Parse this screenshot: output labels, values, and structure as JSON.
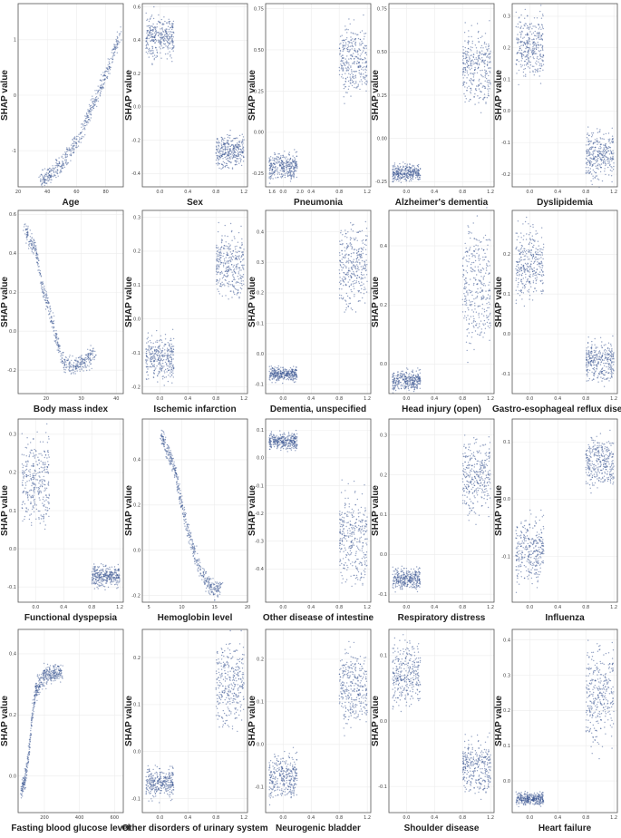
{
  "chart_data": [
    {
      "type": "scatter",
      "kind": "cont",
      "xlabel": "Age",
      "ylabel": "SHAP value",
      "xlim": [
        20,
        92
      ],
      "ylim": [
        -1.65,
        1.65
      ],
      "xticks": [
        "20",
        "40",
        "60",
        "80"
      ],
      "yticks": [
        "1",
        "0",
        "-1"
      ],
      "curve": [
        [
          36,
          -1.55
        ],
        [
          50,
          -1.25
        ],
        [
          60,
          -0.85
        ],
        [
          70,
          -0.25
        ],
        [
          80,
          0.35
        ],
        [
          90,
          1.1
        ]
      ],
      "marker_color": "#3a5592"
    },
    {
      "type": "scatter",
      "kind": "bin",
      "xlabel": "Sex",
      "ylabel": "SHAP value",
      "xlim": [
        -0.25,
        1.25
      ],
      "ylim": [
        -0.48,
        0.62
      ],
      "xticks": [
        "0.0",
        "0.4",
        "0.8",
        "1.2",
        "1.6",
        "2.0"
      ],
      "yticks": [
        "0.6",
        "0.4",
        "0.2",
        "0.0",
        "-0.2",
        "-0.4"
      ],
      "clusters": [
        {
          "x": 0,
          "y": [
            0.28,
            0.56
          ]
        },
        {
          "x": 1,
          "y": [
            -0.37,
            -0.16
          ]
        }
      ],
      "marker_color": "#3a5592"
    },
    {
      "type": "scatter",
      "kind": "bin",
      "xlabel": "Pneumonia",
      "ylabel": "SHAP value",
      "xlim": [
        -0.25,
        1.25
      ],
      "ylim": [
        -0.33,
        0.78
      ],
      "xticks": [
        "0.0",
        "0.4",
        "0.8",
        "1.2"
      ],
      "yticks": [
        "0.75",
        "0.50",
        "0.25",
        "0.00",
        "-0.25"
      ],
      "clusters": [
        {
          "x": 0,
          "y": [
            -0.29,
            -0.12
          ]
        },
        {
          "x": 1,
          "y": [
            0.22,
            0.66
          ]
        }
      ],
      "marker_color": "#3a5592"
    },
    {
      "type": "scatter",
      "kind": "bin",
      "xlabel": "Alzheimer's dementia",
      "ylabel": "SHAP value",
      "xlim": [
        -0.25,
        1.25
      ],
      "ylim": [
        -0.28,
        0.78
      ],
      "xticks": [
        "0.0",
        "0.4",
        "0.8",
        "1.2"
      ],
      "yticks": [
        "0.75",
        "0.50",
        "0.25",
        "0.00",
        "-0.25"
      ],
      "clusters": [
        {
          "x": 0,
          "y": [
            -0.25,
            -0.15
          ]
        },
        {
          "x": 1,
          "y": [
            0.2,
            0.62
          ]
        }
      ],
      "marker_color": "#3a5592"
    },
    {
      "type": "scatter",
      "kind": "bin",
      "xlabel": "Dyslipidemia",
      "ylabel": "SHAP value",
      "xlim": [
        -0.25,
        1.25
      ],
      "ylim": [
        -0.24,
        0.34
      ],
      "xticks": [
        "0.0",
        "0.4",
        "0.8",
        "1.2"
      ],
      "yticks": [
        "0.3",
        "0.2",
        "0.1",
        "0.0",
        "-0.1",
        "-0.2"
      ],
      "clusters": [
        {
          "x": 0,
          "y": [
            0.1,
            0.32
          ]
        },
        {
          "x": 1,
          "y": [
            -0.22,
            -0.05
          ]
        }
      ],
      "marker_color": "#3a5592"
    },
    {
      "type": "scatter",
      "kind": "cont",
      "xlabel": "Body mass index",
      "ylabel": "SHAP value",
      "xlim": [
        12,
        42
      ],
      "ylim": [
        -0.32,
        0.62
      ],
      "xticks": [
        "20",
        "30",
        "40"
      ],
      "yticks": [
        "0.6",
        "0.4",
        "0.2",
        "0.0",
        "-0.2"
      ],
      "curve": [
        [
          14,
          0.52
        ],
        [
          17,
          0.42
        ],
        [
          19,
          0.22
        ],
        [
          21,
          0.1
        ],
        [
          23,
          -0.05
        ],
        [
          25,
          -0.16
        ],
        [
          28,
          -0.18
        ],
        [
          34,
          -0.12
        ]
      ],
      "marker_color": "#3a5592"
    },
    {
      "type": "scatter",
      "kind": "bin",
      "xlabel": "Ischemic infarction",
      "ylabel": "SHAP value",
      "xlim": [
        -0.25,
        1.25
      ],
      "ylim": [
        -0.22,
        0.32
      ],
      "xticks": [
        "0.0",
        "0.4",
        "0.8",
        "1.2"
      ],
      "yticks": [
        "0.3",
        "0.2",
        "0.1",
        "0.0",
        "-0.1",
        "-0.2"
      ],
      "clusters": [
        {
          "x": 0,
          "y": [
            -0.18,
            -0.05
          ]
        },
        {
          "x": 1,
          "y": [
            0.06,
            0.26
          ]
        }
      ],
      "marker_color": "#3a5592"
    },
    {
      "type": "scatter",
      "kind": "bin",
      "xlabel": "Dementia, unspecified",
      "ylabel": "SHAP value",
      "xlim": [
        -0.25,
        1.25
      ],
      "ylim": [
        -0.13,
        0.47
      ],
      "xticks": [
        "0.0",
        "0.4",
        "0.8",
        "1.2"
      ],
      "yticks": [
        "0.4",
        "0.3",
        "0.2",
        "0.1",
        "0.0",
        "-0.1"
      ],
      "clusters": [
        {
          "x": 0,
          "y": [
            -0.09,
            -0.04
          ]
        },
        {
          "x": 1,
          "y": [
            0.14,
            0.44
          ]
        }
      ],
      "marker_color": "#3a5592"
    },
    {
      "type": "scatter",
      "kind": "bin",
      "xlabel": "Head injury (open)",
      "ylabel": "SHAP value",
      "xlim": [
        -0.25,
        1.25
      ],
      "ylim": [
        -0.1,
        0.52
      ],
      "xticks": [
        "0.0",
        "0.4",
        "0.8",
        "1.2"
      ],
      "yticks": [
        "0.4",
        "0.2",
        "0.0"
      ],
      "clusters": [
        {
          "x": 0,
          "y": [
            -0.09,
            -0.02
          ]
        },
        {
          "x": 1,
          "y": [
            0.05,
            0.48
          ]
        }
      ],
      "marker_color": "#3a5592"
    },
    {
      "type": "scatter",
      "kind": "bin",
      "xlabel": "Gastro-esophageal reflux disease",
      "ylabel": "SHAP value",
      "xlim": [
        -0.25,
        1.25
      ],
      "ylim": [
        -0.15,
        0.31
      ],
      "xticks": [
        "0.0",
        "0.4",
        "0.8",
        "1.2"
      ],
      "yticks": [
        "0.2",
        "0.1",
        "0.0",
        "-0.1"
      ],
      "clusters": [
        {
          "x": 0,
          "y": [
            0.08,
            0.27
          ]
        },
        {
          "x": 1,
          "y": [
            -0.12,
            -0.02
          ]
        }
      ],
      "marker_color": "#3a5592"
    },
    {
      "type": "scatter",
      "kind": "bin",
      "xlabel": "Functional dyspepsia",
      "ylabel": "SHAP value",
      "xlim": [
        -0.25,
        1.25
      ],
      "ylim": [
        -0.14,
        0.34
      ],
      "xticks": [
        "0.0",
        "0.4",
        "0.8",
        "1.2"
      ],
      "yticks": [
        "0.3",
        "0.2",
        "0.1",
        "0.0",
        "-0.1"
      ],
      "clusters": [
        {
          "x": 0,
          "y": [
            0.05,
            0.31
          ]
        },
        {
          "x": 1,
          "y": [
            -0.1,
            -0.04
          ]
        }
      ],
      "marker_color": "#3a5592"
    },
    {
      "type": "scatter",
      "kind": "cont",
      "xlabel": "Hemoglobin level",
      "ylabel": "SHAP value",
      "xlim": [
        4,
        20
      ],
      "ylim": [
        -0.23,
        0.58
      ],
      "xticks": [
        "5",
        "10",
        "15",
        "20"
      ],
      "yticks": [
        "0.4",
        "0.2",
        "0.0",
        "-0.2"
      ],
      "curve": [
        [
          7,
          0.5
        ],
        [
          9,
          0.35
        ],
        [
          10,
          0.2
        ],
        [
          11,
          0.08
        ],
        [
          12,
          -0.02
        ],
        [
          13,
          -0.09
        ],
        [
          14,
          -0.15
        ],
        [
          15,
          -0.18
        ],
        [
          16,
          -0.16
        ]
      ],
      "marker_color": "#3a5592"
    },
    {
      "type": "scatter",
      "kind": "bin",
      "xlabel": "Other disease of intestine",
      "ylabel": "SHAP value",
      "xlim": [
        -0.25,
        1.25
      ],
      "ylim": [
        -0.52,
        0.14
      ],
      "xticks": [
        "0.0",
        "0.4",
        "0.8",
        "1.2"
      ],
      "yticks": [
        "0.1",
        "0.0",
        "-0.1",
        "-0.2",
        "-0.3",
        "-0.4"
      ],
      "clusters": [
        {
          "x": 0,
          "y": [
            0.03,
            0.09
          ]
        },
        {
          "x": 1,
          "y": [
            -0.46,
            -0.12
          ]
        }
      ],
      "marker_color": "#3a5592"
    },
    {
      "type": "scatter",
      "kind": "bin",
      "xlabel": "Respiratory distress",
      "ylabel": "SHAP value",
      "xlim": [
        -0.25,
        1.25
      ],
      "ylim": [
        -0.12,
        0.34
      ],
      "xticks": [
        "0.0",
        "0.4",
        "0.8",
        "1.2"
      ],
      "yticks": [
        "0.3",
        "0.2",
        "0.1",
        "0.0",
        "-0.1"
      ],
      "clusters": [
        {
          "x": 0,
          "y": [
            -0.09,
            -0.03
          ]
        },
        {
          "x": 1,
          "y": [
            0.1,
            0.3
          ]
        }
      ],
      "marker_color": "#3a5592"
    },
    {
      "type": "scatter",
      "kind": "bin",
      "xlabel": "Influenza",
      "ylabel": "SHAP value",
      "xlim": [
        -0.25,
        1.25
      ],
      "ylim": [
        -0.18,
        0.14
      ],
      "xticks": [
        "0.0",
        "0.4",
        "0.8",
        "1.2"
      ],
      "yticks": [
        "0.1",
        "0.0",
        "-0.1"
      ],
      "clusters": [
        {
          "x": 0,
          "y": [
            -0.15,
            -0.03
          ]
        },
        {
          "x": 1,
          "y": [
            0.02,
            0.11
          ]
        }
      ],
      "marker_color": "#3a5592"
    },
    {
      "type": "scatter",
      "kind": "cont",
      "xlabel": "Fasting blood glucose level",
      "ylabel": "SHAP value",
      "xlim": [
        50,
        650
      ],
      "ylim": [
        -0.12,
        0.48
      ],
      "xticks": [
        "200",
        "400",
        "600"
      ],
      "yticks": [
        "0.4",
        "0.2",
        "0.0"
      ],
      "curve": [
        [
          70,
          -0.05
        ],
        [
          85,
          -0.02
        ],
        [
          100,
          0.02
        ],
        [
          115,
          0.1
        ],
        [
          130,
          0.2
        ],
        [
          150,
          0.28
        ],
        [
          200,
          0.33
        ],
        [
          300,
          0.34
        ]
      ],
      "marker_color": "#3a5592"
    },
    {
      "type": "scatter",
      "kind": "bin",
      "xlabel": "Other disorders of urinary system",
      "ylabel": "SHAP value",
      "xlim": [
        -0.25,
        1.25
      ],
      "ylim": [
        -0.13,
        0.26
      ],
      "xticks": [
        "0.0",
        "0.4",
        "0.8",
        "1.2"
      ],
      "yticks": [
        "0.2",
        "0.1",
        "0.0",
        "-0.1"
      ],
      "clusters": [
        {
          "x": 0,
          "y": [
            -0.1,
            -0.03
          ]
        },
        {
          "x": 1,
          "y": [
            0.05,
            0.24
          ]
        }
      ],
      "marker_color": "#3a5592"
    },
    {
      "type": "scatter",
      "kind": "bin",
      "xlabel": "Neurogenic bladder",
      "ylabel": "SHAP value",
      "xlim": [
        -0.25,
        1.25
      ],
      "ylim": [
        -0.16,
        0.27
      ],
      "xticks": [
        "0.0",
        "0.4",
        "0.8",
        "1.2"
      ],
      "yticks": [
        "0.2",
        "0.1",
        "0.0",
        "-0.1"
      ],
      "clusters": [
        {
          "x": 0,
          "y": [
            -0.13,
            -0.02
          ]
        },
        {
          "x": 1,
          "y": [
            0.04,
            0.23
          ]
        }
      ],
      "marker_color": "#3a5592"
    },
    {
      "type": "scatter",
      "kind": "bin",
      "xlabel": "Shoulder disease",
      "ylabel": "SHAP value",
      "xlim": [
        -0.25,
        1.25
      ],
      "ylim": [
        -0.14,
        0.14
      ],
      "xticks": [
        "0.0",
        "0.4",
        "0.8",
        "1.2"
      ],
      "yticks": [
        "0.1",
        "0.0",
        "-0.1"
      ],
      "clusters": [
        {
          "x": 0,
          "y": [
            0.02,
            0.12
          ]
        },
        {
          "x": 1,
          "y": [
            -0.11,
            -0.03
          ]
        }
      ],
      "marker_color": "#3a5592"
    },
    {
      "type": "scatter",
      "kind": "bin",
      "xlabel": "Heart failure",
      "ylabel": "SHAP value",
      "xlim": [
        -0.25,
        1.25
      ],
      "ylim": [
        -0.09,
        0.43
      ],
      "xticks": [
        "0.0",
        "0.4",
        "0.8",
        "1.2"
      ],
      "yticks": [
        "0.4",
        "0.3",
        "0.2",
        "0.1",
        "0.0"
      ],
      "clusters": [
        {
          "x": 0,
          "y": [
            -0.07,
            -0.03
          ]
        },
        {
          "x": 1,
          "y": [
            0.1,
            0.4
          ]
        }
      ],
      "marker_color": "#3a5592"
    }
  ]
}
